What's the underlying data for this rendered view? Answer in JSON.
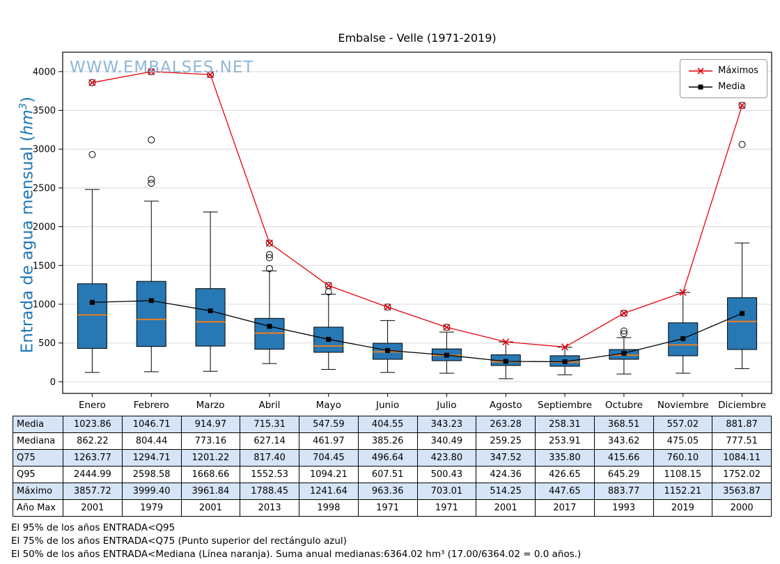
{
  "title": "Embalse - Velle (1971-2019)",
  "watermark": "WWW.EMBALSES.NET",
  "ylabel": {
    "prefix": "Entrada de agua mensual (",
    "unit": "hm",
    "exponent": "3",
    "suffix": ")"
  },
  "chart_data": {
    "type": "boxplot",
    "title": "Embalse - Velle (1971-2019)",
    "ylabel": "Entrada de agua mensual (hm³)",
    "categories": [
      "Enero",
      "Febrero",
      "Marzo",
      "Abril",
      "Mayo",
      "Junio",
      "Julio",
      "Agosto",
      "Septiembre",
      "Octubre",
      "Noviembre",
      "Diciembre"
    ],
    "ylim": [
      -150,
      4250
    ],
    "yticks": [
      0,
      500,
      1000,
      1500,
      2000,
      2500,
      3000,
      3500,
      4000
    ],
    "grid": "horizontal",
    "legend_position": "upper right",
    "colors": {
      "box_fill": "#2878b5",
      "box_edge": "#000000",
      "median": "#ff7f0e",
      "maximos": "#e8000b",
      "media": "#000000",
      "grid": "#d9d9d9",
      "watermark": "#8fb6d6",
      "ylabel": "#1f77b4",
      "table_highlight": "#d6e4f7"
    },
    "boxes": [
      {
        "q1": 430,
        "median": 862.22,
        "q3": 1263.77,
        "whisker_low": 120,
        "whisker_high": 2480,
        "outliers": [
          2930,
          3857.72
        ]
      },
      {
        "q1": 455,
        "median": 804.44,
        "q3": 1294.71,
        "whisker_low": 130,
        "whisker_high": 2330,
        "outliers": [
          2560,
          2610,
          3120,
          3999.4
        ]
      },
      {
        "q1": 460,
        "median": 773.16,
        "q3": 1201.22,
        "whisker_low": 135,
        "whisker_high": 2190,
        "outliers": [
          3961.84
        ]
      },
      {
        "q1": 420,
        "median": 627.14,
        "q3": 817.4,
        "whisker_low": 235,
        "whisker_high": 1430,
        "outliers": [
          1460,
          1600,
          1640,
          1788.45
        ]
      },
      {
        "q1": 380,
        "median": 461.97,
        "q3": 704.45,
        "whisker_low": 160,
        "whisker_high": 1130,
        "outliers": [
          1160,
          1241.64
        ]
      },
      {
        "q1": 290,
        "median": 385.26,
        "q3": 496.64,
        "whisker_low": 120,
        "whisker_high": 790,
        "outliers": [
          963.36
        ]
      },
      {
        "q1": 272,
        "median": 340.49,
        "q3": 423.8,
        "whisker_low": 110,
        "whisker_high": 640,
        "outliers": [
          703.01
        ]
      },
      {
        "q1": 210,
        "median": 259.25,
        "q3": 347.52,
        "whisker_low": 40,
        "whisker_high": 514.25,
        "outliers": []
      },
      {
        "q1": 200,
        "median": 253.91,
        "q3": 335.8,
        "whisker_low": 90,
        "whisker_high": 447.65,
        "outliers": []
      },
      {
        "q1": 290,
        "median": 343.62,
        "q3": 415.66,
        "whisker_low": 100,
        "whisker_high": 570,
        "outliers": [
          620,
          655,
          883.77
        ]
      },
      {
        "q1": 335,
        "median": 475.05,
        "q3": 760.1,
        "whisker_low": 110,
        "whisker_high": 1152.21,
        "outliers": []
      },
      {
        "q1": 416,
        "median": 777.51,
        "q3": 1084.11,
        "whisker_low": 170,
        "whisker_high": 1790,
        "outliers": [
          3060,
          3563.87
        ]
      }
    ],
    "series": [
      {
        "name": "Máximos",
        "color": "#e8000b",
        "marker": "x",
        "values": [
          3857.72,
          3999.4,
          3961.84,
          1788.45,
          1241.64,
          963.36,
          703.01,
          514.25,
          447.65,
          883.77,
          1152.21,
          3563.87
        ]
      },
      {
        "name": "Media",
        "color": "#000000",
        "marker": "square",
        "values": [
          1023.86,
          1046.71,
          914.97,
          715.31,
          547.59,
          404.55,
          343.23,
          263.28,
          258.31,
          368.51,
          557.02,
          881.87
        ]
      }
    ]
  },
  "table": {
    "row_headers": [
      "Media",
      "Mediana",
      "Q75",
      "Q95",
      "Máximo",
      "Año Max"
    ],
    "columns": [
      "Enero",
      "Febrero",
      "Marzo",
      "Abril",
      "Mayo",
      "Junio",
      "Julio",
      "Agosto",
      "Septiembre",
      "Octubre",
      "Noviembre",
      "Diciembre"
    ],
    "rows": [
      [
        "1023.86",
        "1046.71",
        "914.97",
        "715.31",
        "547.59",
        "404.55",
        "343.23",
        "263.28",
        "258.31",
        "368.51",
        "557.02",
        "881.87"
      ],
      [
        "862.22",
        "804.44",
        "773.16",
        "627.14",
        "461.97",
        "385.26",
        "340.49",
        "259.25",
        "253.91",
        "343.62",
        "475.05",
        "777.51"
      ],
      [
        "1263.77",
        "1294.71",
        "1201.22",
        "817.40",
        "704.45",
        "496.64",
        "423.80",
        "347.52",
        "335.80",
        "415.66",
        "760.10",
        "1084.11"
      ],
      [
        "2444.99",
        "2598.58",
        "1668.66",
        "1552.53",
        "1094.21",
        "607.51",
        "500.43",
        "424.36",
        "426.65",
        "645.29",
        "1108.15",
        "1752.02"
      ],
      [
        "3857.72",
        "3999.40",
        "3961.84",
        "1788.45",
        "1241.64",
        "963.36",
        "703.01",
        "514.25",
        "447.65",
        "883.77",
        "1152.21",
        "3563.87"
      ],
      [
        "2001",
        "1979",
        "2001",
        "2013",
        "1998",
        "1971",
        "1971",
        "2001",
        "2017",
        "1993",
        "2019",
        "2000"
      ]
    ]
  },
  "footnotes": [
    "El 95% de los años ENTRADA<Q95",
    "El 75% de los años ENTRADA<Q75 (Punto superior del rectángulo azul)",
    "El 50% de los años ENTRADA<Mediana (Línea naranja). Suma anual medianas:6364.02 hm³ (17.00/6364.02 = 0.0 años.)"
  ]
}
